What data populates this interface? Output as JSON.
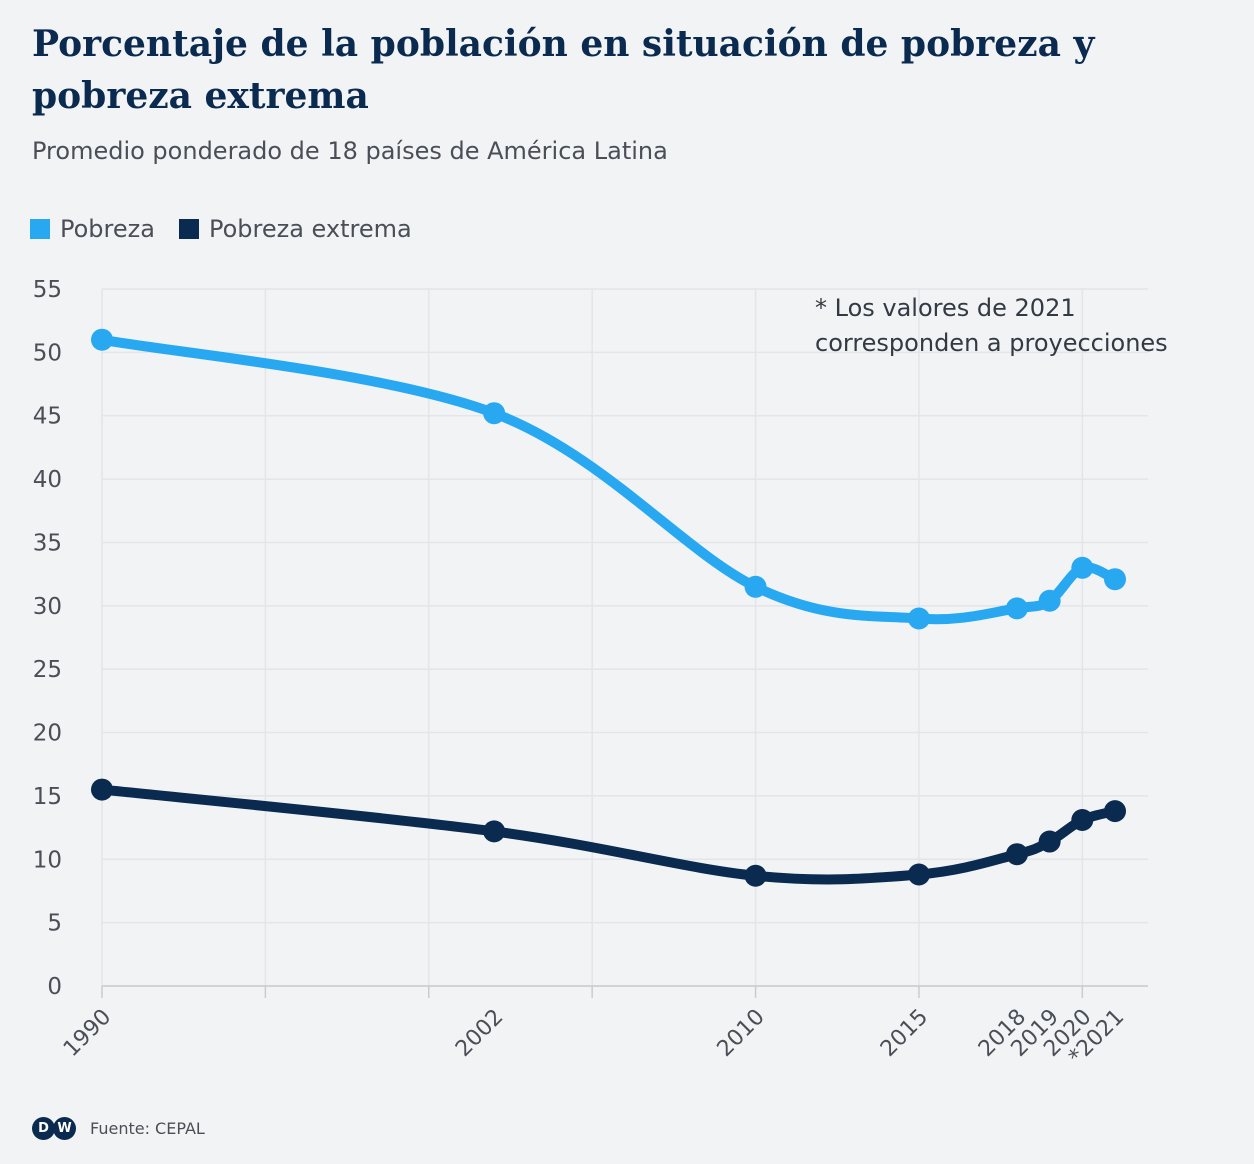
{
  "header": {
    "title": "Porcentaje de la población en situación de pobreza y pobreza extrema",
    "subtitle": "Promedio ponderado de 18 países de América Latina"
  },
  "legend": [
    {
      "label": "Pobreza",
      "color": "#29a8f2"
    },
    {
      "label": "Pobreza extrema",
      "color": "#0a2a4f"
    }
  ],
  "note": {
    "line1": "* Los valores de 2021",
    "line2": "corresponden a proyecciones"
  },
  "footer": {
    "logo_text": "DW",
    "source": "Fuente: CEPAL"
  },
  "chart_data": {
    "type": "line",
    "x": [
      1990,
      2002,
      2010,
      2015,
      2018,
      2019,
      2020,
      2021
    ],
    "x_tick_labels": [
      "1990",
      "2002",
      "2010",
      "2015",
      "2018",
      "2019",
      "2020",
      "*2021"
    ],
    "ylim": [
      0,
      55
    ],
    "y_ticks": [
      0,
      5,
      10,
      15,
      20,
      25,
      30,
      35,
      40,
      45,
      50,
      55
    ],
    "grid": true,
    "legend_position": "top-left",
    "series": [
      {
        "name": "Pobreza",
        "color": "#29a8f2",
        "values": [
          51.0,
          45.2,
          31.5,
          29.0,
          29.8,
          30.4,
          33.0,
          32.1
        ]
      },
      {
        "name": "Pobreza extrema",
        "color": "#0a2a4f",
        "values": [
          15.5,
          12.2,
          8.7,
          8.8,
          10.4,
          11.4,
          13.1,
          13.8
        ]
      }
    ]
  }
}
